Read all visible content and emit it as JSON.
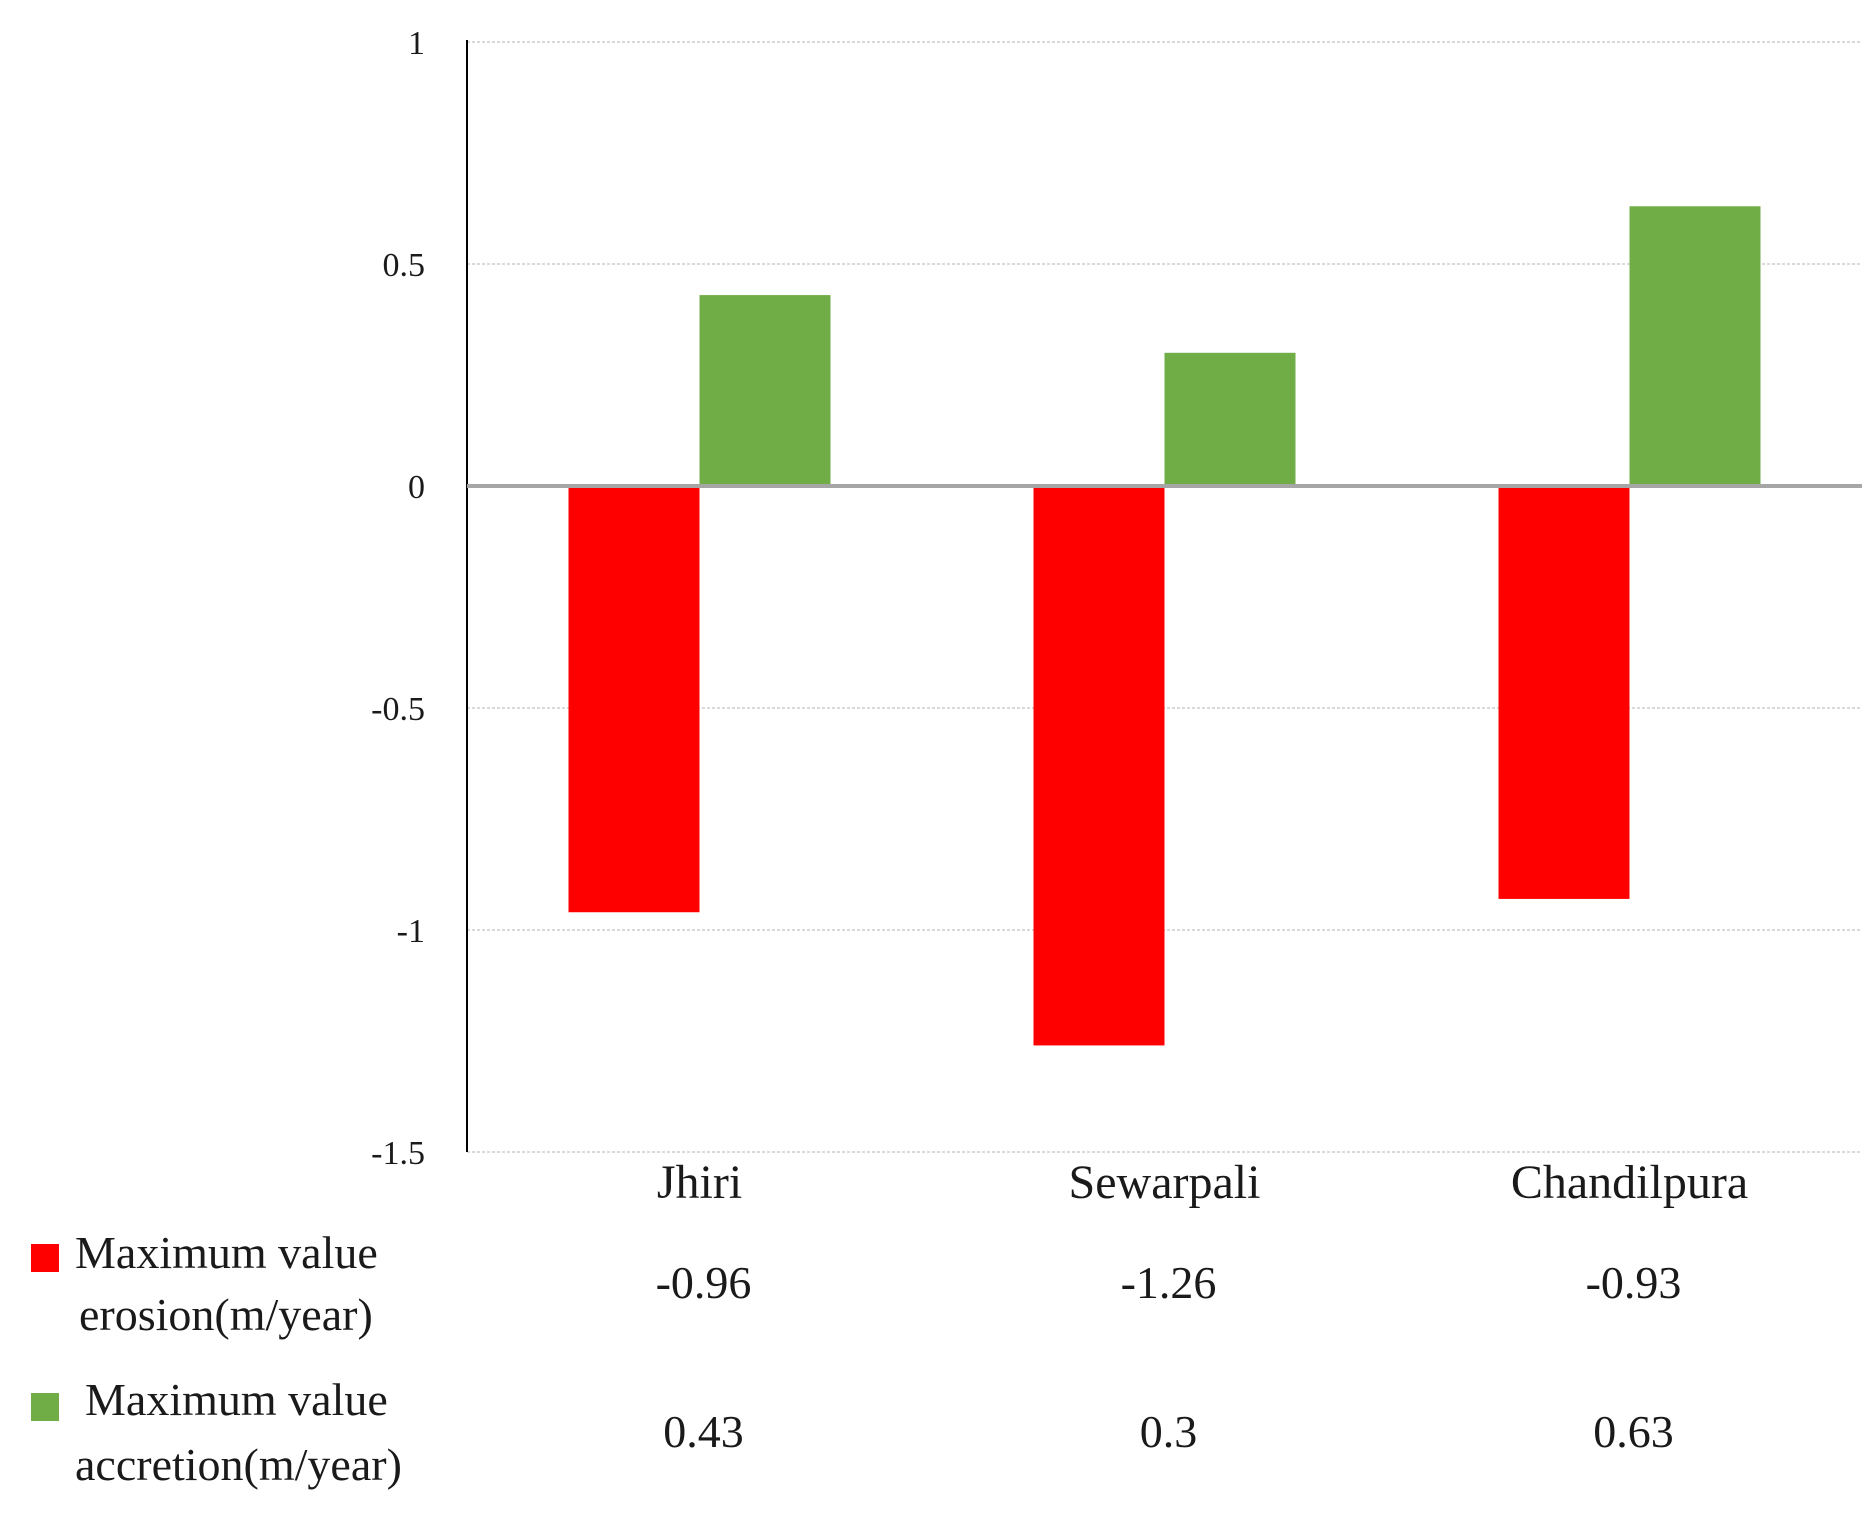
{
  "chart_data": {
    "type": "bar",
    "title": "",
    "xlabel": "",
    "ylabel": "",
    "categories": [
      "Jhiri",
      "Sewarpali",
      "Chandilpura"
    ],
    "ylim": [
      -1.5,
      1
    ],
    "yticks": [
      1,
      0.5,
      0,
      -0.5,
      -1,
      -1.5
    ],
    "ytick_labels": [
      "1",
      "0.5",
      "0",
      "-0.5",
      "-1",
      "-1.5"
    ],
    "grid": true,
    "legend_position": "bottom-left data table",
    "series": [
      {
        "name": "Maximum value erosion(m/year)",
        "legend_lines": [
          "Maximum value",
          "erosion(m/year)"
        ],
        "color": "#ff0000",
        "values": [
          -0.96,
          -1.26,
          -0.93
        ],
        "value_labels": [
          "-0.96",
          "-1.26",
          "-0.93"
        ]
      },
      {
        "name": "Maximum value accretion(m/year)",
        "legend_lines": [
          "Maximum value",
          "accretion(m/year)"
        ],
        "color": "#70ad47",
        "values": [
          0.43,
          0.3,
          0.63
        ],
        "value_labels": [
          "0.43",
          "0.3",
          "0.63"
        ]
      }
    ]
  },
  "colors": {
    "gridline": "#d9d9d9",
    "zero_line": "#a6a6a6",
    "axis_line": "#000000"
  }
}
